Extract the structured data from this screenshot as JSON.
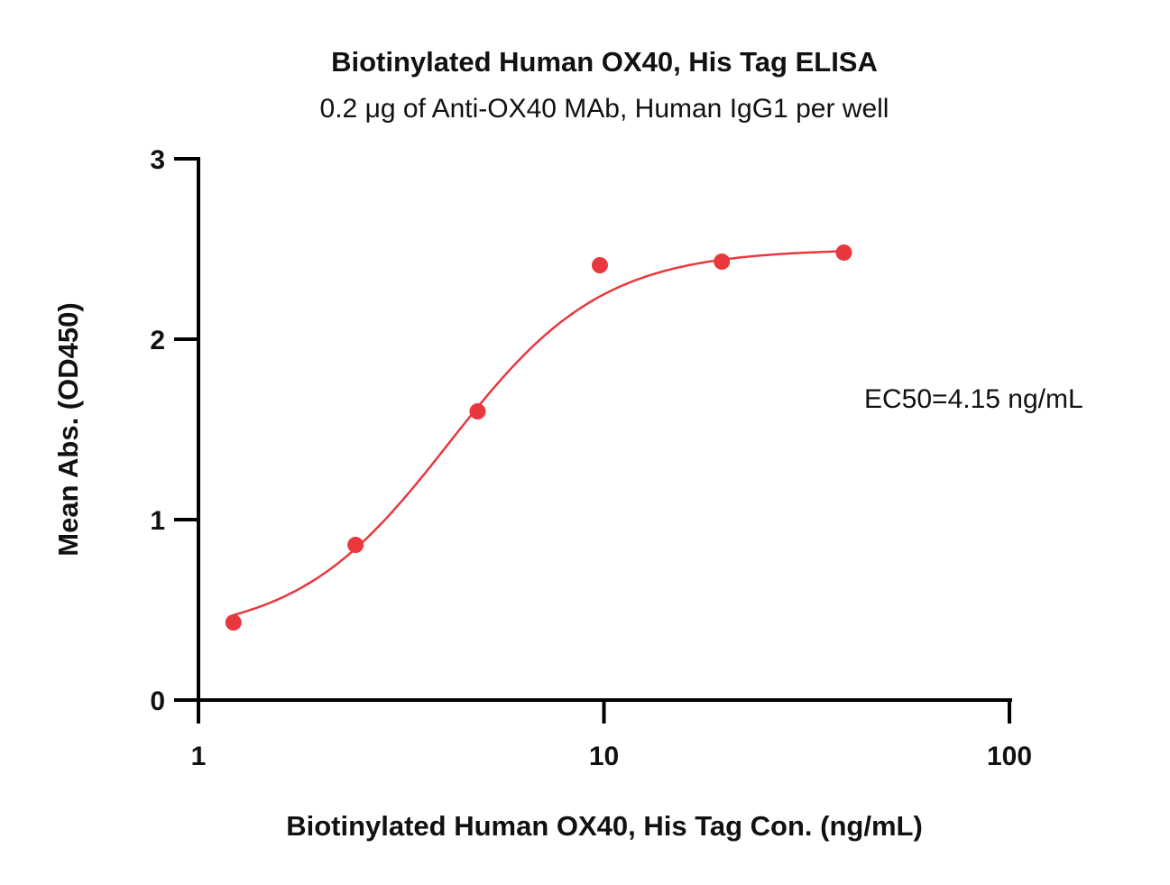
{
  "chart_data": {
    "type": "scatter",
    "title": "Biotinylated Human OX40, His Tag ELISA",
    "subtitle": "0.2 μg of Anti-OX40 MAb, Human IgG1 per well",
    "xlabel": "Biotinylated Human OX40, His Tag Con. (ng/mL)",
    "ylabel": "Mean Abs. (OD450)",
    "xscale": "log",
    "xlim": [
      1,
      100
    ],
    "ylim": [
      0,
      3
    ],
    "xticks": [
      1,
      10,
      100
    ],
    "xtick_labels": [
      "1",
      "10",
      "100"
    ],
    "yticks": [
      0,
      1,
      2,
      3
    ],
    "ytick_labels": [
      "0",
      "1",
      "2",
      "3"
    ],
    "grid": false,
    "series": [
      {
        "x": [
          1.22,
          2.44,
          4.88,
          9.77,
          19.53,
          39.06
        ],
        "y": [
          0.43,
          0.86,
          1.6,
          2.41,
          2.43,
          2.48
        ],
        "color": "#e8383d",
        "fit": "4PL"
      }
    ],
    "fit_params": {
      "bottom": 0.35,
      "top": 2.5,
      "ec50": 4.15,
      "hill": 2.3
    },
    "annotations": [
      {
        "text": "EC50=4.15 ng/mL"
      }
    ]
  }
}
